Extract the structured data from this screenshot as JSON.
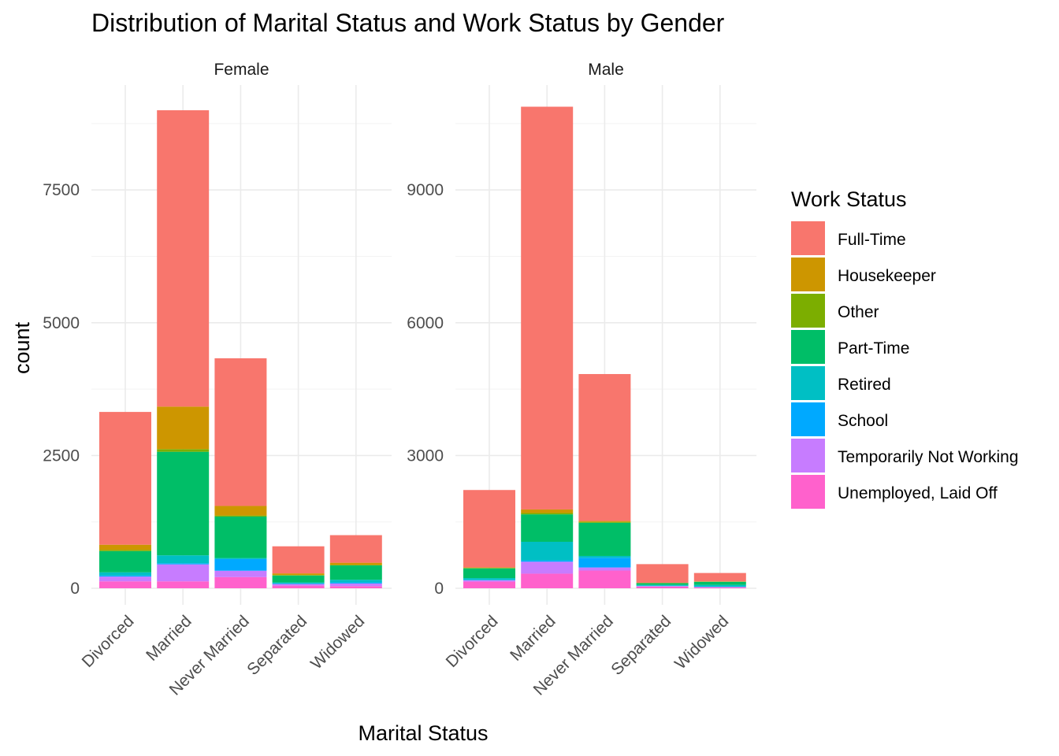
{
  "chart_data": {
    "type": "bar",
    "stacked": true,
    "title": "Distribution of Marital Status and Work Status by Gender",
    "xlabel": "Marital Status",
    "ylabel": "count",
    "legend_title": "Work Status",
    "legend_position": "right",
    "grid": true,
    "categories": [
      "Divorced",
      "Married",
      "Never Married",
      "Separated",
      "Widowed"
    ],
    "series_names": [
      "Full-Time",
      "Housekeeper",
      "Other",
      "Part-Time",
      "Retired",
      "School",
      "Temporarily Not Working",
      "Unemployed, Laid Off"
    ],
    "colors": [
      "#F8766D",
      "#CD9600",
      "#7CAE00",
      "#00BE67",
      "#00BFC4",
      "#00A9FF",
      "#C77CFF",
      "#FF61CC"
    ],
    "facets": [
      {
        "label": "Female",
        "ylim": [
          0,
          9000
        ],
        "yticks": [
          0,
          2500,
          5000,
          7500
        ],
        "series": [
          {
            "name": "Full-Time",
            "values": [
              2500,
              5580,
              2780,
              510,
              520
            ]
          },
          {
            "name": "Housekeeper",
            "values": [
              100,
              800,
              180,
              30,
              40
            ]
          },
          {
            "name": "Other",
            "values": [
              20,
              50,
              20,
              10,
              10
            ]
          },
          {
            "name": "Part-Time",
            "values": [
              400,
              1950,
              780,
              130,
              270
            ]
          },
          {
            "name": "Retired",
            "values": [
              60,
              150,
              20,
              20,
              50
            ]
          },
          {
            "name": "School",
            "values": [
              20,
              20,
              220,
              10,
              20
            ]
          },
          {
            "name": "Temporarily Not Working",
            "values": [
              90,
              320,
              120,
              30,
              50
            ]
          },
          {
            "name": "Unemployed, Laid Off",
            "values": [
              130,
              130,
              210,
              50,
              40
            ]
          }
        ]
      },
      {
        "label": "Male",
        "ylim": [
          0,
          10800
        ],
        "yticks": [
          0,
          3000,
          6000,
          9000
        ],
        "series": [
          {
            "name": "Full-Time",
            "values": [
              1750,
              9100,
              3320,
              420,
              190
            ]
          },
          {
            "name": "Housekeeper",
            "values": [
              10,
              80,
              20,
              5,
              5
            ]
          },
          {
            "name": "Other",
            "values": [
              10,
              30,
              20,
              5,
              5
            ]
          },
          {
            "name": "Part-Time",
            "values": [
              220,
              620,
              750,
              40,
              70
            ]
          },
          {
            "name": "Retired",
            "values": [
              40,
              420,
              40,
              20,
              40
            ]
          },
          {
            "name": "School",
            "values": [
              10,
              30,
              220,
              5,
              5
            ]
          },
          {
            "name": "Temporarily Not Working",
            "values": [
              30,
              270,
              70,
              10,
              10
            ]
          },
          {
            "name": "Unemployed, Laid Off",
            "values": [
              150,
              330,
              400,
              40,
              20
            ]
          }
        ]
      }
    ]
  }
}
